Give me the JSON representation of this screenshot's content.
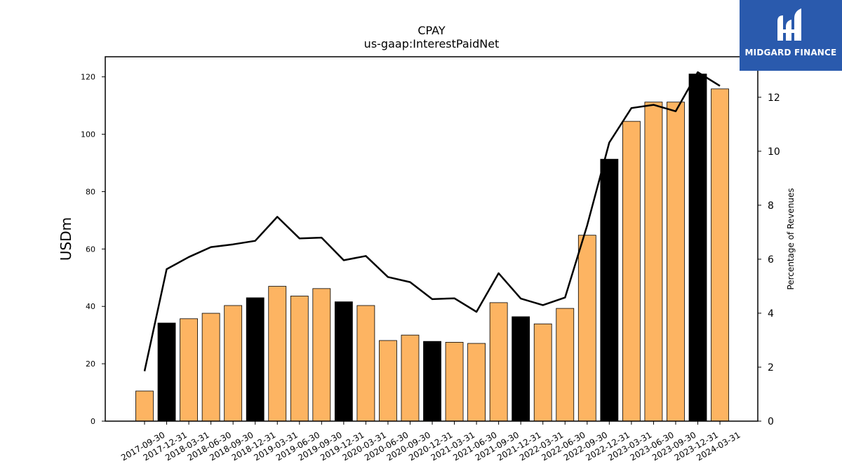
{
  "chart_data": {
    "type": "bar",
    "title": "CPAY",
    "subtitle": "us-gaap:InterestPaidNet",
    "ylabel": "USDm",
    "y2label": "Percentage of Revenues",
    "ylim": [
      0,
      127
    ],
    "y2lim": [
      0,
      13.5
    ],
    "yticks": [
      0,
      20,
      40,
      60,
      80,
      100,
      120
    ],
    "y2ticks": [
      0,
      2,
      4,
      6,
      8,
      10,
      12
    ],
    "categories": [
      "2017-09-30",
      "2017-12-31",
      "2018-03-31",
      "2018-06-30",
      "2018-09-30",
      "2018-12-31",
      "2019-03-31",
      "2019-06-30",
      "2019-09-30",
      "2019-12-31",
      "2020-03-31",
      "2020-06-30",
      "2020-09-30",
      "2020-12-31",
      "2021-03-31",
      "2021-06-30",
      "2021-09-30",
      "2021-12-31",
      "2022-03-31",
      "2022-06-30",
      "2022-09-30",
      "2022-12-31",
      "2023-03-31",
      "2023-06-30",
      "2023-09-30",
      "2023-12-31",
      "2024-03-31"
    ],
    "series": [
      {
        "values": [
          10.5,
          34.2,
          35.7,
          37.6,
          40.3,
          43.0,
          47.0,
          43.6,
          46.2,
          41.6,
          40.3,
          28.1,
          30.0,
          27.8,
          27.5,
          27.1,
          41.3,
          36.4,
          33.9,
          39.3,
          64.8,
          91.3,
          104.5,
          111.2,
          111.2,
          121.0,
          115.8
        ],
        "bar_colors": [
          "#fdb462",
          "#000000",
          "#fdb462",
          "#fdb462",
          "#fdb462",
          "#000000",
          "#fdb462",
          "#fdb462",
          "#fdb462",
          "#000000",
          "#fdb462",
          "#fdb462",
          "#fdb462",
          "#000000",
          "#fdb462",
          "#fdb462",
          "#fdb462",
          "#000000",
          "#fdb462",
          "#fdb462",
          "#fdb462",
          "#000000",
          "#fdb462",
          "#fdb462",
          "#fdb462",
          "#000000",
          "#fdb462"
        ]
      },
      {
        "axis": "right",
        "type": "line",
        "color": "#000000",
        "values": [
          1.85,
          5.63,
          6.08,
          6.45,
          6.55,
          6.68,
          7.57,
          6.77,
          6.8,
          5.96,
          6.12,
          5.34,
          5.15,
          4.52,
          4.55,
          4.05,
          5.48,
          4.54,
          4.3,
          4.58,
          7.25,
          10.32,
          11.6,
          11.72,
          11.48,
          12.93,
          12.42
        ]
      }
    ],
    "grid": false,
    "legend": "none"
  },
  "logo": {
    "text": "MIDGARD FINANCE",
    "background": "#2a5aad"
  }
}
